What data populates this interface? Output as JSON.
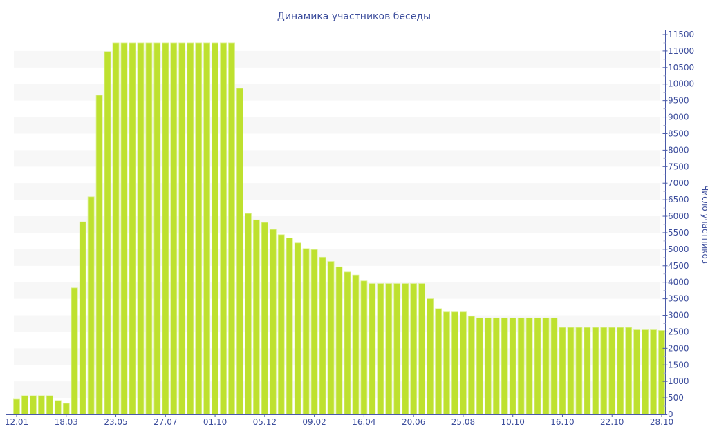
{
  "chart_data": {
    "type": "bar",
    "title": "Динамика участников беседы",
    "xlabel": "",
    "ylabel": "Число участников",
    "ylim": [
      0,
      11500
    ],
    "y_tick_step": 500,
    "y_axis_position": "right",
    "grid": "alternating horizontal bands",
    "colors": {
      "bar": "#bee12f",
      "bar_edge": "#d9ef8a",
      "band": "#f7f7f7",
      "text": "#3c4d9c",
      "axis": "#4a5aa8"
    },
    "x_tick_labels": [
      "12.01",
      "18.03",
      "23.05",
      "27.07",
      "01.10",
      "05.12",
      "09.02",
      "16.04",
      "20.06",
      "25.08",
      "10.10",
      "16.10",
      "22.10",
      "28.10"
    ],
    "x_tick_every": 6,
    "values": [
      460,
      565,
      565,
      565,
      565,
      420,
      335,
      3830,
      5830,
      6590,
      9660,
      10980,
      11250,
      11250,
      11250,
      11250,
      11250,
      11250,
      11250,
      11250,
      11250,
      11250,
      11250,
      11250,
      11250,
      11250,
      11250,
      9870,
      6080,
      5890,
      5810,
      5600,
      5440,
      5340,
      5190,
      5020,
      4990,
      4760,
      4630,
      4470,
      4310,
      4220,
      4040,
      3960,
      3960,
      3960,
      3960,
      3960,
      3960,
      3960,
      3500,
      3200,
      3100,
      3100,
      3100,
      2970,
      2920,
      2920,
      2920,
      2920,
      2920,
      2920,
      2920,
      2920,
      2920,
      2920,
      2630,
      2630,
      2630,
      2630,
      2630,
      2630,
      2630,
      2630,
      2630,
      2560,
      2560,
      2560,
      2540
    ]
  }
}
